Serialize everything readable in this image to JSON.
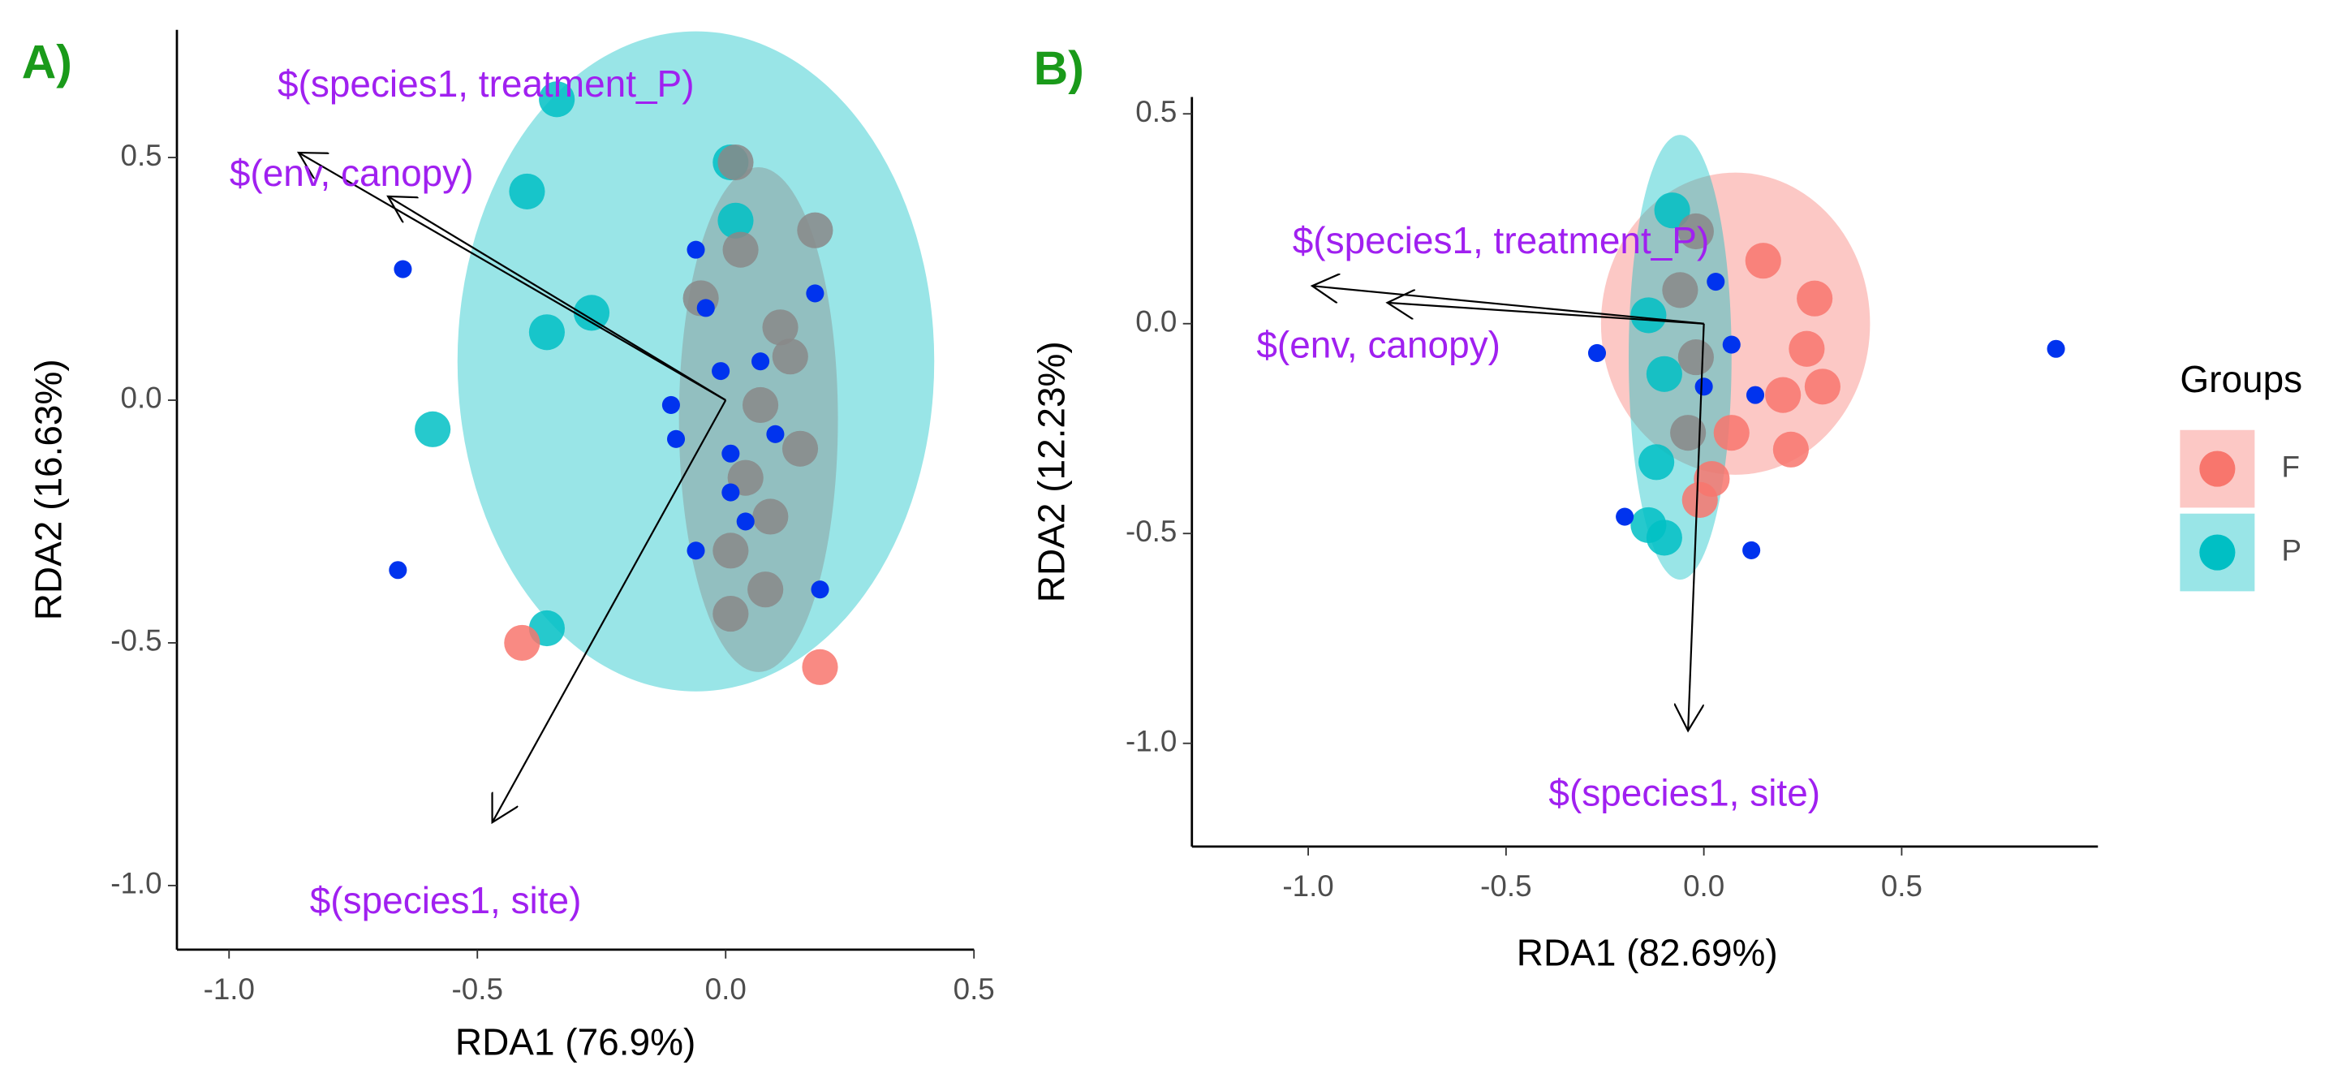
{
  "chart_data": [
    {
      "type": "scatter",
      "panel_label": "A)",
      "xlabel": "RDA1 (76.9%)",
      "ylabel": "RDA2 (16.63%)",
      "xlim": [
        -1.105,
        0.5
      ],
      "ylim": [
        -1.132,
        0.763
      ],
      "xticks": [
        {
          "value": -1.0,
          "label": "-1.0"
        },
        -0.5,
        {
          "value": 0.0,
          "label": "0.0"
        },
        0.5
      ],
      "yticks": [
        {
          "value": -1.0,
          "label": "-1.0"
        },
        -0.5,
        {
          "value": 0.0,
          "label": "0.0"
        },
        0.5
      ],
      "series": [
        {
          "color": "#00bfc4",
          "size": 12,
          "ellipse": {
            "cx": -0.06,
            "cy": 0.08,
            "rx": 0.48,
            "ry": 0.68
          },
          "x": [
            -0.34,
            -0.4,
            -0.27,
            -0.36,
            -0.59,
            -0.36,
            0.01,
            0.02
          ],
          "y": [
            0.62,
            0.43,
            0.18,
            0.14,
            -0.06,
            -0.47,
            0.49,
            0.37
          ]
        },
        {
          "color": "#f8766d",
          "size": 12,
          "x": [
            -0.41,
            0.19
          ],
          "y": [
            -0.5,
            -0.55
          ]
        },
        {
          "color": "#888888",
          "size": 12,
          "ellipse": {
            "cx": 0.066,
            "cy": -0.04,
            "rx": 0.16,
            "ry": 0.52
          },
          "x": [
            0.02,
            0.18,
            0.03,
            -0.05,
            0.11,
            0.13,
            0.07,
            0.15,
            0.04,
            0.09,
            0.01,
            0.08,
            0.01
          ],
          "y": [
            0.49,
            0.35,
            0.31,
            0.21,
            0.15,
            0.09,
            -0.01,
            -0.1,
            -0.16,
            -0.24,
            -0.31,
            -0.39,
            -0.44
          ]
        },
        {
          "color": "#0033ee",
          "size": 6,
          "x": [
            -0.65,
            -0.66,
            -0.06,
            -0.04,
            0.18,
            -0.11,
            -0.1,
            -0.01,
            0.07,
            0.01,
            0.01,
            -0.06,
            0.19,
            0.1,
            0.04
          ],
          "y": [
            0.27,
            -0.35,
            0.31,
            0.19,
            0.22,
            -0.01,
            -0.08,
            0.06,
            0.08,
            -0.11,
            -0.19,
            -0.31,
            -0.39,
            -0.07,
            -0.25
          ]
        }
      ],
      "arrows": [
        {
          "label": "$(species1, treatment_P)",
          "x": -0.86,
          "y": 0.51
        },
        {
          "label": "$(env, canopy)",
          "x": -0.68,
          "y": 0.42
        },
        {
          "label": "$(species1, site)",
          "x": -0.47,
          "y": -0.87
        }
      ]
    },
    {
      "type": "scatter",
      "panel_label": "B)",
      "xlabel": "RDA1 (82.69%)",
      "ylabel": "RDA2 (12.23%)",
      "xlim": [
        -1.294,
        0.996
      ],
      "ylim": [
        -1.246,
        0.54
      ],
      "xticks": [
        {
          "value": -1.0,
          "label": "-1.0"
        },
        -0.5,
        {
          "value": 0.0,
          "label": "0.0"
        },
        0.5
      ],
      "yticks": [
        {
          "value": -1.0,
          "label": "-1.0"
        },
        -0.5,
        {
          "value": 0.0,
          "label": "0.0"
        },
        0.5
      ],
      "legend_title": "Groups",
      "series": [
        {
          "name": "F",
          "color": "#f8766d",
          "size": 12,
          "ellipse": {
            "cx": 0.08,
            "cy": 0.0,
            "rx": 0.34,
            "ry": 0.36
          },
          "x": [
            0.15,
            0.28,
            0.26,
            0.2,
            0.22,
            0.02,
            -0.01,
            0.07,
            0.3
          ],
          "y": [
            0.15,
            0.06,
            -0.06,
            -0.17,
            -0.3,
            -0.37,
            -0.42,
            -0.26,
            -0.15
          ]
        },
        {
          "name": "P",
          "color": "#00bfc4",
          "size": 12,
          "ellipse": {
            "cx": -0.06,
            "cy": -0.08,
            "rx": 0.13,
            "ry": 0.53
          },
          "x": [
            -0.08,
            -0.14,
            -0.1,
            -0.12,
            -0.1,
            -0.14
          ],
          "y": [
            0.27,
            0.02,
            -0.12,
            -0.33,
            -0.51,
            -0.48
          ]
        },
        {
          "color": "#888888",
          "size": 12,
          "x": [
            -0.02,
            -0.06,
            -0.02,
            -0.04
          ],
          "y": [
            0.22,
            0.08,
            -0.08,
            -0.26
          ]
        },
        {
          "color": "#0033ee",
          "size": 6,
          "x": [
            0.89,
            -0.2,
            0.12,
            -0.27,
            0.03,
            0.07,
            0.13,
            0.0
          ],
          "y": [
            -0.06,
            -0.46,
            -0.54,
            -0.07,
            0.1,
            -0.05,
            -0.17,
            -0.15
          ]
        }
      ],
      "arrows": [
        {
          "label": "$(species1, treatment_P)",
          "x": -0.99,
          "y": 0.09
        },
        {
          "label": "$(env, canopy)",
          "x": -0.8,
          "y": 0.05
        },
        {
          "label": "$(species1, site)",
          "x": -0.04,
          "y": -0.97
        }
      ]
    }
  ]
}
